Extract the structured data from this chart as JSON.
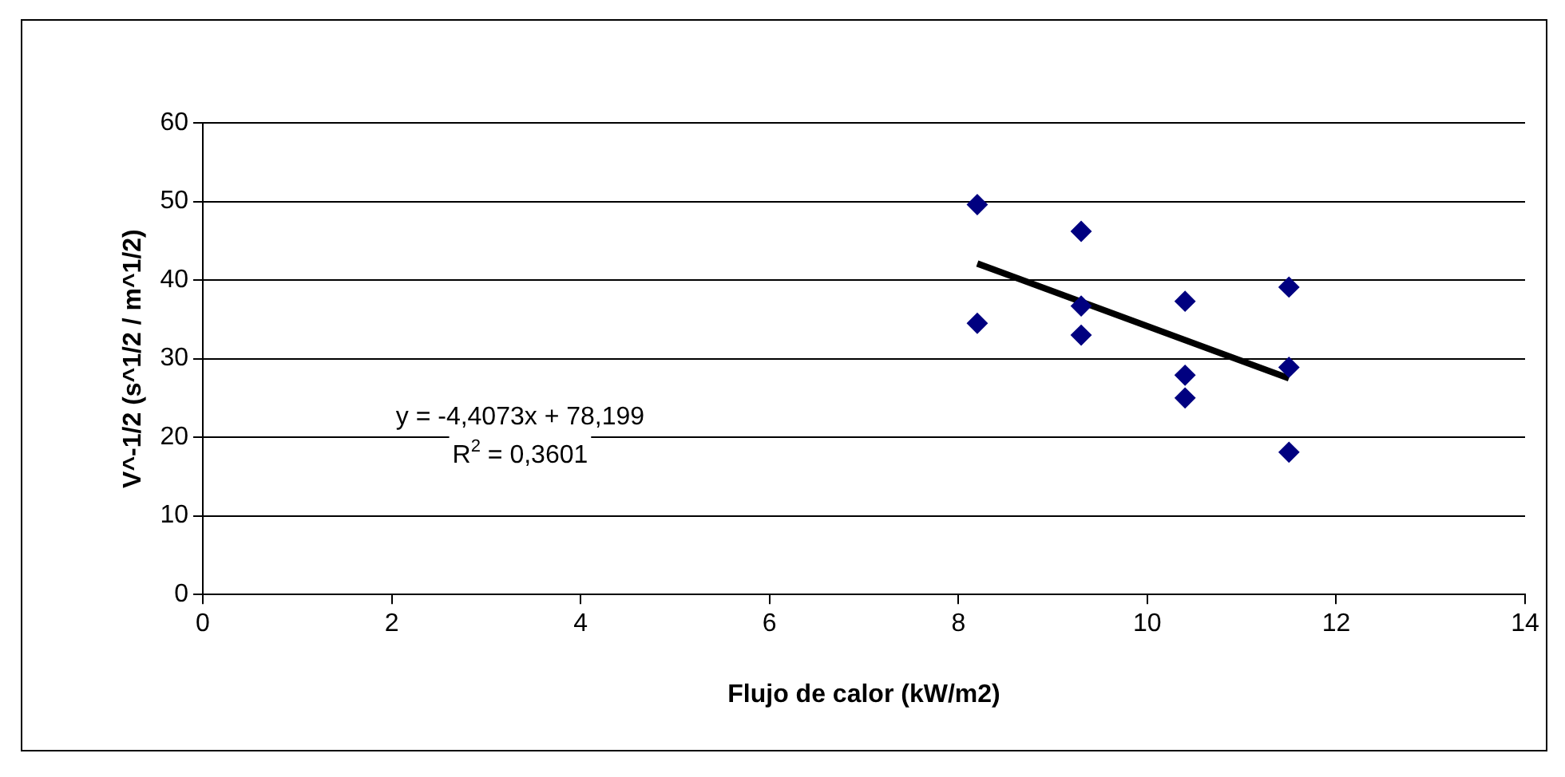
{
  "chart_data": {
    "type": "scatter",
    "xlabel": "Flujo de calor (kW/m2)",
    "ylabel": "V^-1/2 (s^1/2 / m^1/2)",
    "annotations": [
      "y = -4,4073x + 78,199",
      "R$^{2}$ = 0,3601"
    ],
    "series": [
      {
        "color": "#000080",
        "x": [
          8.2,
          8.2,
          9.3,
          9.3,
          9.3,
          10.4,
          10.4,
          10.4,
          11.5,
          11.5,
          11.5
        ],
        "values": [
          49.6,
          34.5,
          46.2,
          36.7,
          33.0,
          37.3,
          27.9,
          25.0,
          39.1,
          28.9,
          18.1
        ]
      },
      {
        "type": "line",
        "color": "#000000",
        "marker": "none",
        "x": [
          8.2,
          11.5
        ],
        "values": [
          42.1,
          27.5
        ]
      }
    ],
    "xlim": [
      0,
      14
    ],
    "xticks": [
      0,
      2,
      4,
      6,
      8,
      10,
      12,
      14
    ],
    "ylim": [
      0,
      60
    ],
    "yticks": [
      0,
      10,
      20,
      30,
      40,
      50,
      60
    ],
    "grid": "y",
    "marker": "diamond",
    "legend": false
  }
}
